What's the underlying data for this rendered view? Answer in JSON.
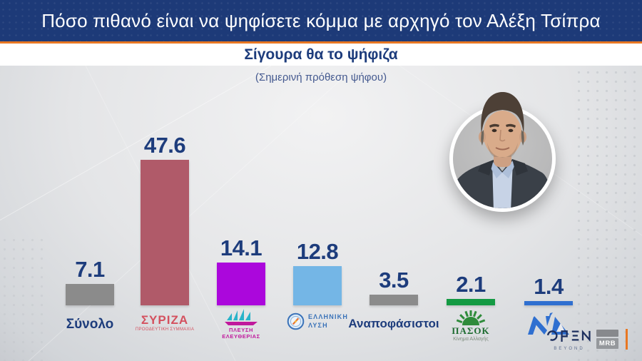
{
  "header": {
    "title": "Πόσο πιθανό είναι να ψηφίσετε κόμμα με αρχηγό τον Αλέξη Τσίπρα",
    "subtitle": "Σίγουρα θα το ψήφιζα",
    "note": "(Σημερινή πρόθεση ψήφου)"
  },
  "chart_data": {
    "type": "bar",
    "title": "Σίγουρα θα το ψήφιζα",
    "subtitle": "(Σημερινή πρόθεση ψήφου)",
    "categories": [
      "Σύνολο",
      "ΣΥΡΙΖΑ",
      "ΠΛΕΥΣΗ ΕΛΕΥΘΕΡΙΑΣ",
      "ΕΛΛΗΝΙΚΗ ΛΥΣΗ",
      "Αναποφάσιστοι",
      "ΠΑΣΟΚ",
      "ΝΔ"
    ],
    "values": [
      7.1,
      47.6,
      14.1,
      12.8,
      3.5,
      2.1,
      1.4
    ],
    "bar_colors": [
      "#8b8b8b",
      "#b05a69",
      "#ab07dc",
      "#74b6e6",
      "#8b8b8b",
      "#149a43",
      "#2f6fd0"
    ],
    "ylim": [
      0,
      50
    ],
    "grid": false,
    "legend": "none",
    "value_labels": true
  },
  "labels": {
    "synolo": "Σύνολο",
    "syriza": {
      "name": "ΣΥΡΙΖΑ",
      "sub": "ΠΡΟΟΔΕΥΤΙΚΗ ΣΥΜΜΑΧΙΑ"
    },
    "plefsi": {
      "line1": "ΠΛΕΥΣΗ",
      "line2": "ΕΛΕΥΘΕΡΙΑΣ"
    },
    "elliniki": {
      "line1": "ΕΛΛΗΝΙΚΗ",
      "line2": "ΛΥΣΗ"
    },
    "anapofasistoi": "Αναποφάσιστοι",
    "pasok": {
      "name": "ΠΑΣΟΚ",
      "sub": "Κίνημα Αλλαγής"
    },
    "nd": "ΝΔ"
  },
  "footer": {
    "open_logo": {
      "name": "OPEN",
      "tagline": "BEYOND"
    },
    "mrb_logo": "MRB"
  },
  "colors": {
    "banner_navy": "#1d3a78",
    "accent_orange": "#e87722",
    "value_text_navy": "#1d3c7c",
    "syriza_red": "#d4505e",
    "plefsi_magenta": "#c0199c",
    "plefsi_teal": "#29b3c9",
    "elliniki_blue": "#3a72b8",
    "pasok_green": "#2e8b3a",
    "nd_blue": "#2f6fd0"
  }
}
